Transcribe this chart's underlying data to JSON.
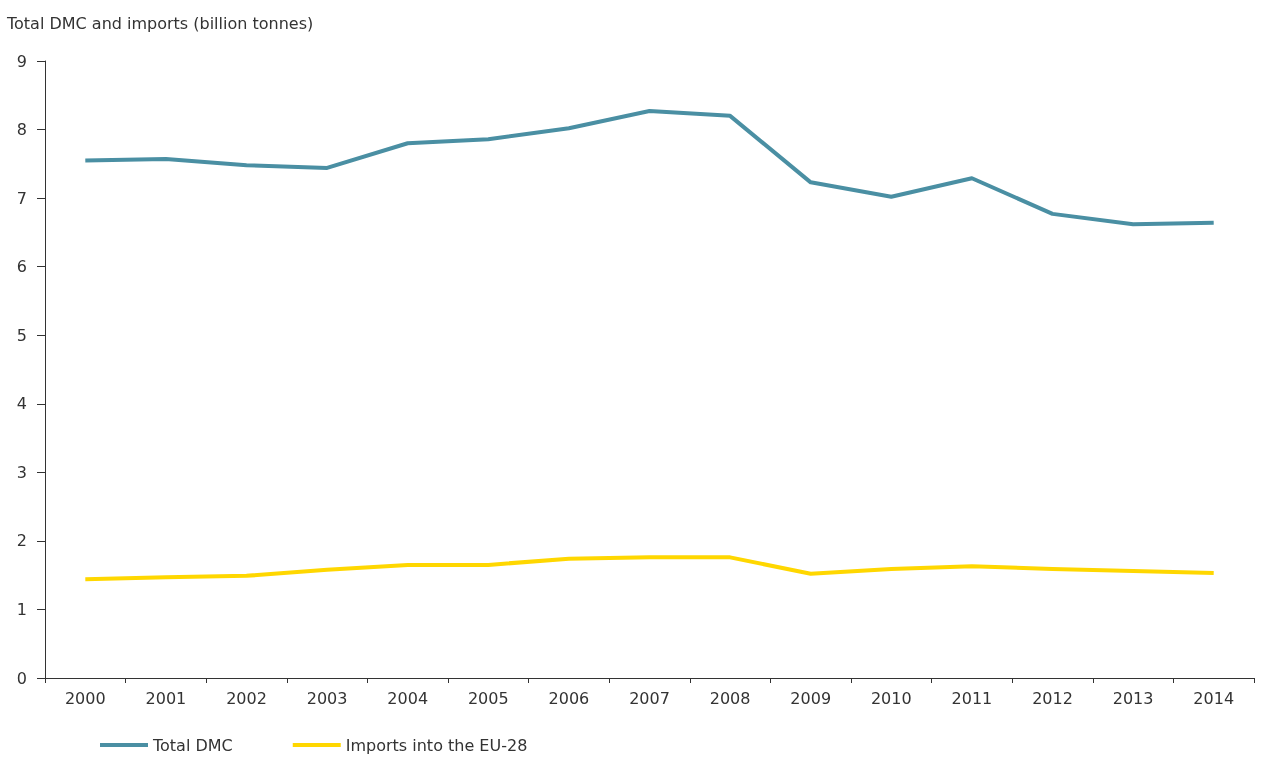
{
  "chart_data": {
    "type": "line",
    "ylabel": "Total DMC and imports (billion tonnes)",
    "categories": [
      "2000",
      "2001",
      "2002",
      "2003",
      "2004",
      "2005",
      "2006",
      "2007",
      "2008",
      "2009",
      "2010",
      "2011",
      "2012",
      "2013",
      "2014"
    ],
    "series": [
      {
        "name": "Total DMC",
        "color": "#4a8fa3",
        "values": [
          7.55,
          7.57,
          7.48,
          7.44,
          7.8,
          7.86,
          8.02,
          8.27,
          8.2,
          7.23,
          7.02,
          7.29,
          6.77,
          6.62,
          6.64
        ]
      },
      {
        "name": "Imports into the EU-28",
        "color": "#ffd700",
        "values": [
          1.44,
          1.47,
          1.49,
          1.58,
          1.65,
          1.65,
          1.74,
          1.76,
          1.76,
          1.52,
          1.59,
          1.63,
          1.59,
          1.56,
          1.53
        ]
      }
    ],
    "ylim": [
      0,
      9
    ],
    "yticks": [
      0,
      1,
      2,
      3,
      4,
      5,
      6,
      7,
      8,
      9
    ],
    "grid": false,
    "legend": "bottom left",
    "marker": "none",
    "line_style": "solid"
  }
}
